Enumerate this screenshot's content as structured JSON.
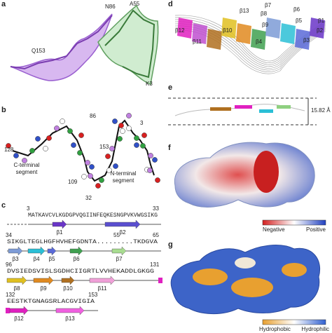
{
  "panel_labels": [
    "a",
    "b",
    "c",
    "d",
    "e",
    "f",
    "g"
  ],
  "panel_a": {
    "labels": [
      "N86",
      "A55",
      "Q153",
      "K3"
    ]
  },
  "panel_b": {
    "residues": [
      "86",
      "3",
      "128",
      "153",
      "109",
      "32"
    ],
    "segments": [
      [
        "C-terminal",
        "segment"
      ],
      [
        "N-terminal",
        "segment"
      ]
    ]
  },
  "panel_c": {
    "rows": [
      {
        "numbers": [
          "3",
          "33"
        ],
        "sequence": "MATKAVCVLKGDGPVQGIINFEQKESNGPVKVWGSIKG",
        "strands": [
          "β1",
          "β2"
        ]
      },
      {
        "numbers": [
          "34",
          "55",
          "65"
        ],
        "sequence": "SIKGLTEGLHGFHVHEFGDNTA.........TKDGVA",
        "strands": [
          "β3",
          "β4",
          "β5",
          "β6",
          "β7"
        ]
      },
      {
        "numbers": [
          "96",
          "131"
        ],
        "sequence": "DVSIEDSVISLSGDHCIIGRTLVVHEKADDLGKGG",
        "strands": [
          "β8",
          "β9",
          "β10",
          "β11"
        ]
      },
      {
        "numbers": [
          "132",
          "153"
        ],
        "sequence": "EESTKTGNAGSRLACGVIGIA",
        "strands": [
          "β12",
          "β13"
        ]
      }
    ]
  },
  "panel_d": {
    "labels": [
      "β12",
      "β11",
      "β10",
      "β13",
      "β7",
      "β8",
      "β9",
      "β6",
      "β5",
      "β4",
      "β1",
      "β2",
      "β3"
    ]
  },
  "panel_e": {
    "distance": "15.82 Å"
  },
  "panel_f": {
    "legend": [
      "Negative",
      "Positive"
    ]
  },
  "panel_g": {
    "legend": [
      "Hydrophobic",
      "Hydrophilic"
    ]
  }
}
